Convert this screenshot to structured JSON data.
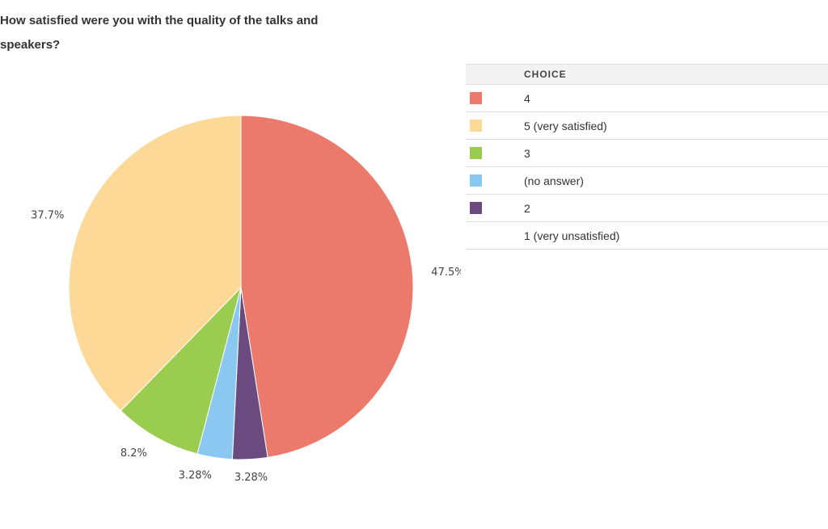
{
  "question": {
    "title": "How satisfied were you with the quality of the talks and speakers?"
  },
  "legend": {
    "column_header": "CHOICE"
  },
  "chart_data": {
    "type": "pie",
    "title": "How satisfied were you with the quality of the talks and speakers?",
    "slices": [
      {
        "label": "4",
        "percent": 47.5,
        "percent_label": "47.5%",
        "color": "#ec7a6c"
      },
      {
        "label": "2",
        "percent": 3.28,
        "percent_label": "3.28%",
        "color": "#6a4a7f"
      },
      {
        "label": "(no answer)",
        "percent": 3.28,
        "percent_label": "3.28%",
        "color": "#8ac8f2"
      },
      {
        "label": "3",
        "percent": 8.2,
        "percent_label": "8.2%",
        "color": "#9acc4f"
      },
      {
        "label": "5 (very satisfied)",
        "percent": 37.7,
        "percent_label": "37.7%",
        "color": "#fdd998"
      }
    ],
    "legend_order": [
      {
        "label": "4",
        "color": "#ec7a6c"
      },
      {
        "label": "5 (very satisfied)",
        "color": "#fdd998"
      },
      {
        "label": "3",
        "color": "#9acc4f"
      },
      {
        "label": "(no answer)",
        "color": "#8ac8f2"
      },
      {
        "label": "2",
        "color": "#6a4a7f"
      },
      {
        "label": "1 (very unsatisfied)",
        "color": null
      }
    ],
    "legend_placement": "right"
  }
}
